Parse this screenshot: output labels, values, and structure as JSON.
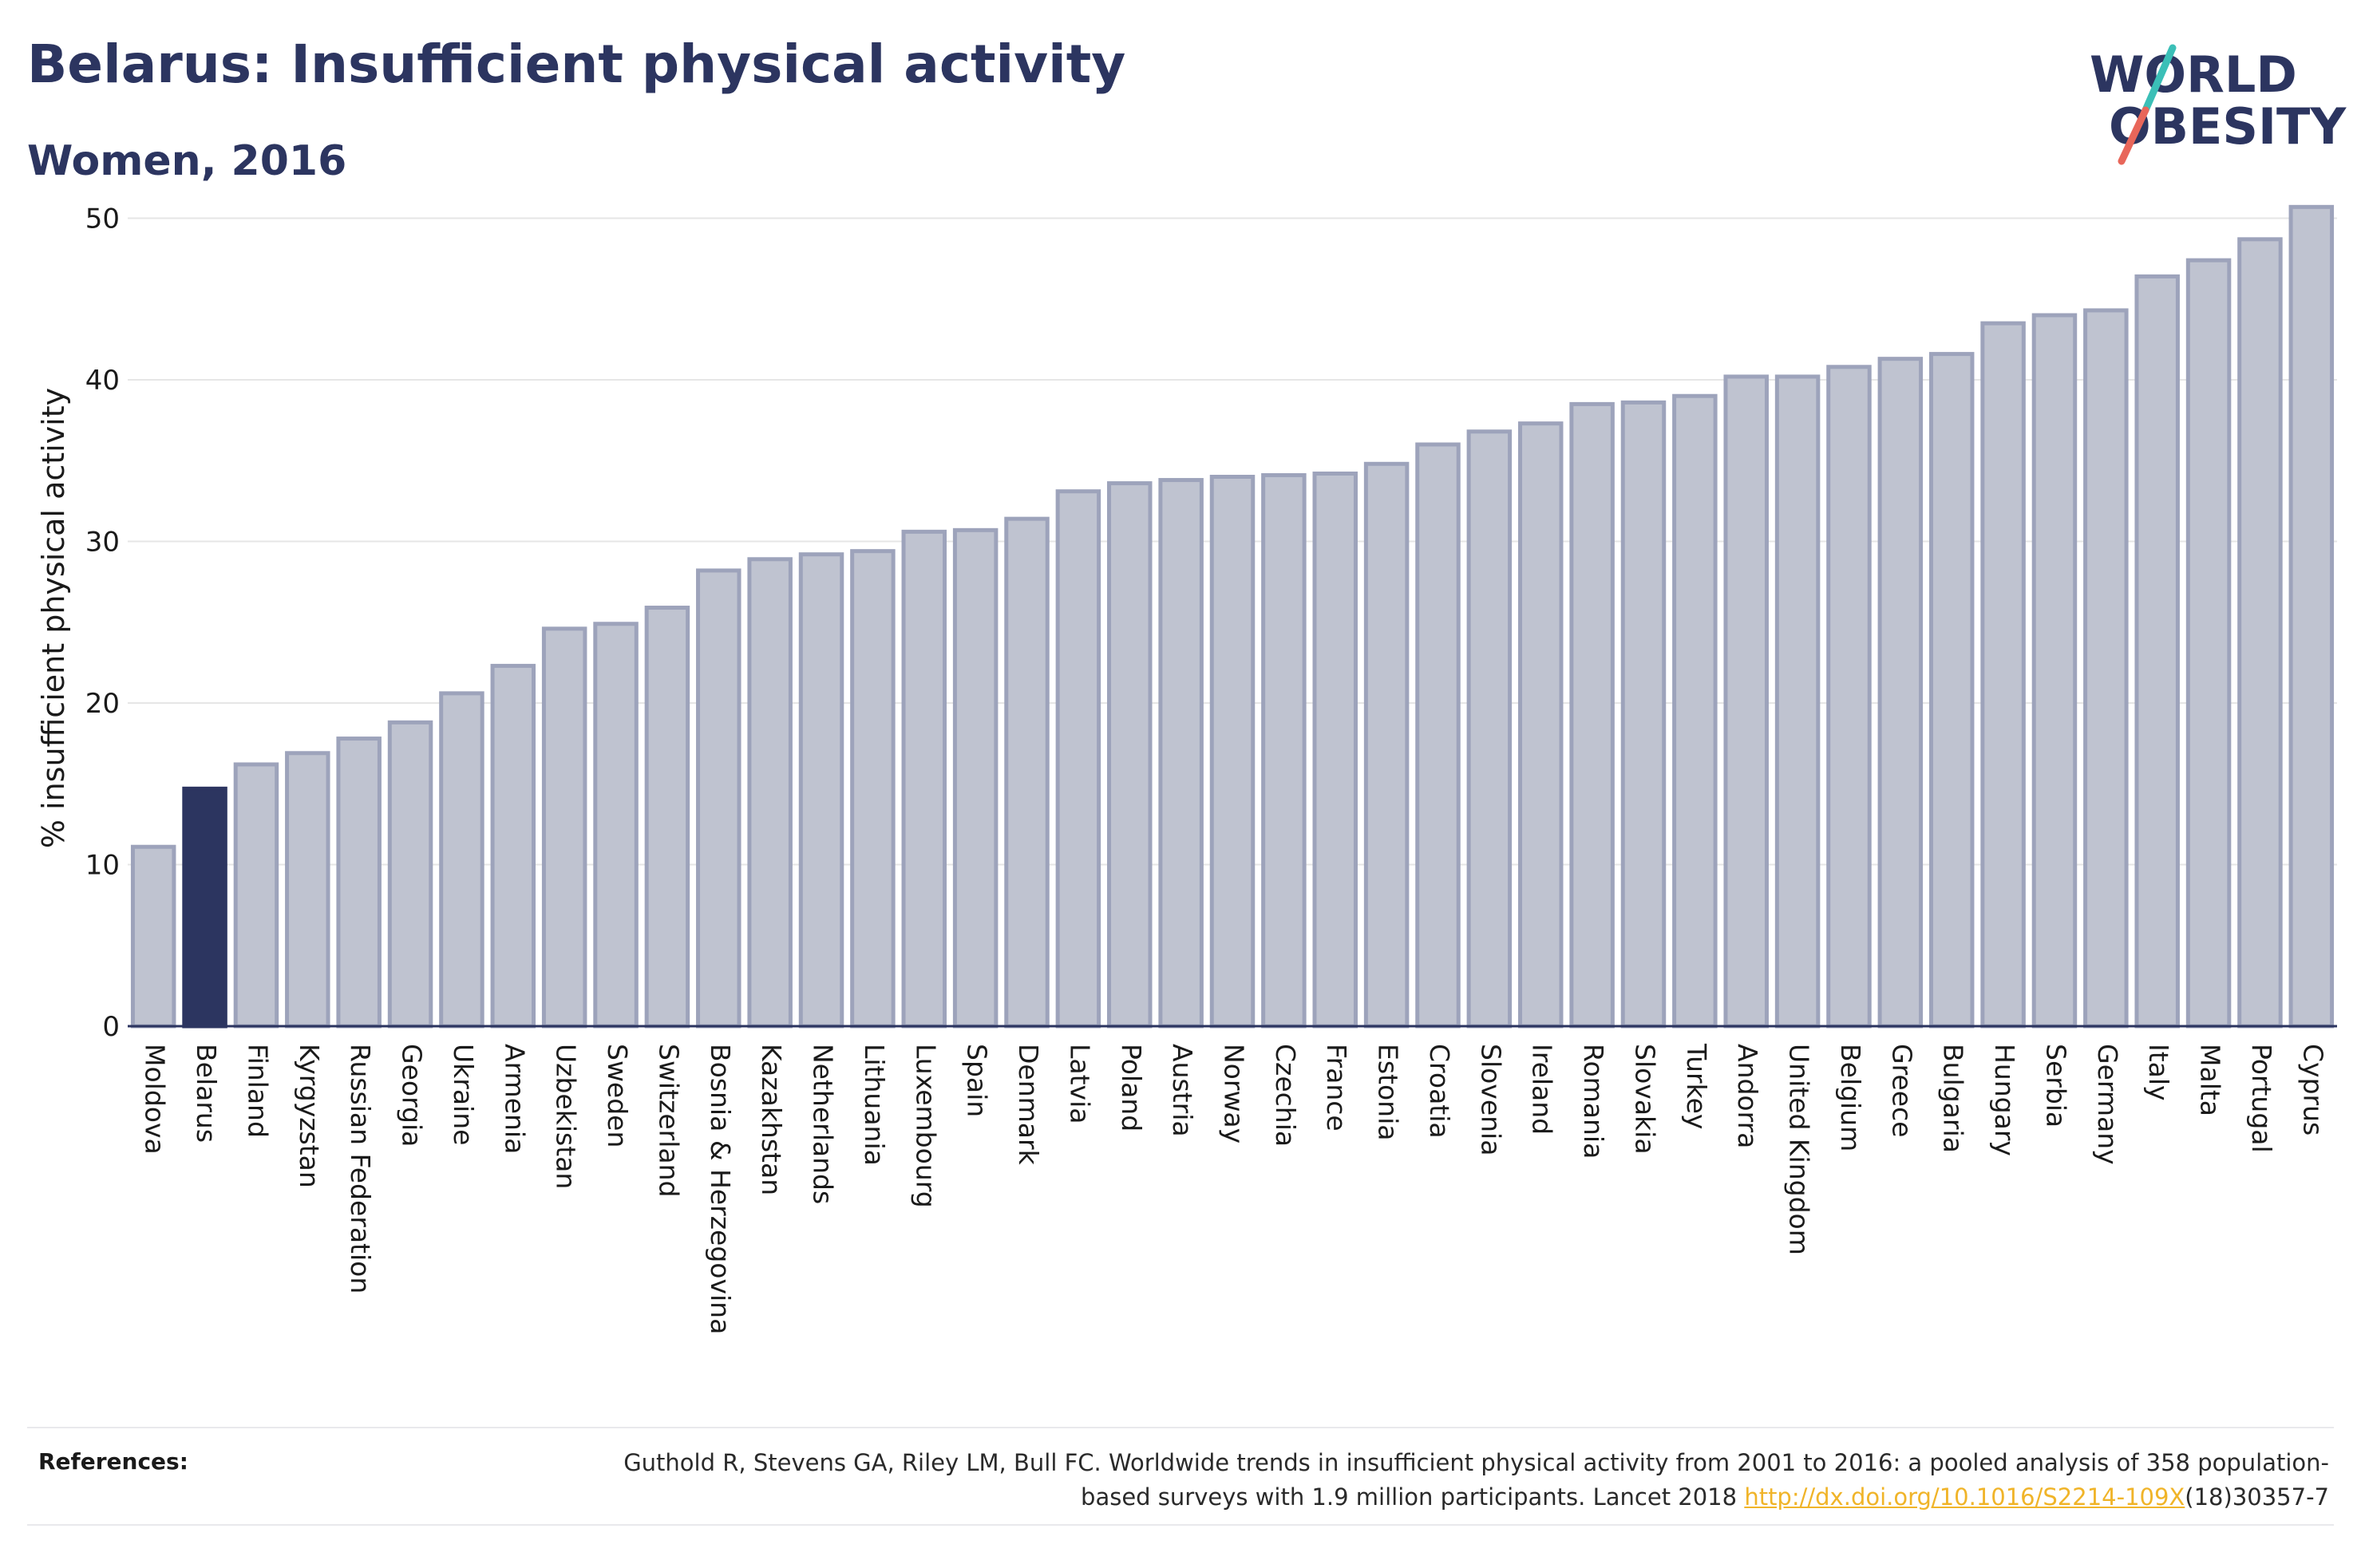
{
  "header": {
    "title": "Belarus: Insufficient physical activity",
    "subtitle": "Women, 2016"
  },
  "logo": {
    "line1": "WORLD",
    "line2": "OBESITY",
    "colors": {
      "text": "#2c3560",
      "slash_top": "#3bbfb7",
      "slash_bottom": "#e8665a"
    }
  },
  "chart_data": {
    "type": "bar",
    "title": "Belarus: Insufficient physical activity",
    "subtitle": "Women, 2016",
    "xlabel": "",
    "ylabel": "% insufficient physical activity",
    "ylim": [
      0,
      52
    ],
    "yticks": [
      0,
      10,
      20,
      30,
      40,
      50
    ],
    "grid": true,
    "highlight": "Belarus",
    "colors": {
      "bar": "#bfc3d0",
      "bar_border": "#9da3bb",
      "highlight": "#2c3560",
      "axis": "#2c3560",
      "grid": "#e6e6e6"
    },
    "categories": [
      "Moldova",
      "Belarus",
      "Finland",
      "Kyrgyzstan",
      "Russian Federation",
      "Georgia",
      "Ukraine",
      "Armenia",
      "Uzbekistan",
      "Sweden",
      "Switzerland",
      "Bosnia & Herzegovina",
      "Kazakhstan",
      "Netherlands",
      "Lithuania",
      "Luxembourg",
      "Spain",
      "Denmark",
      "Latvia",
      "Poland",
      "Austria",
      "Norway",
      "Czechia",
      "France",
      "Estonia",
      "Croatia",
      "Slovenia",
      "Ireland",
      "Romania",
      "Slovakia",
      "Turkey",
      "Andorra",
      "United Kingdom",
      "Belgium",
      "Greece",
      "Bulgaria",
      "Hungary",
      "Serbia",
      "Germany",
      "Italy",
      "Malta",
      "Portugal",
      "Cyprus"
    ],
    "values": [
      11.1,
      14.7,
      16.2,
      16.9,
      17.8,
      18.8,
      20.6,
      22.3,
      24.6,
      24.9,
      25.9,
      28.2,
      28.9,
      29.2,
      29.4,
      30.6,
      30.7,
      31.4,
      33.1,
      33.6,
      33.8,
      34.0,
      34.1,
      34.2,
      34.8,
      36.0,
      36.8,
      37.3,
      38.5,
      38.6,
      39.0,
      40.2,
      40.2,
      40.8,
      41.3,
      41.6,
      43.5,
      44.0,
      44.3,
      46.4,
      47.4,
      48.7,
      50.7
    ]
  },
  "references": {
    "label": "References:",
    "text_before": "Guthold R, Stevens GA, Riley LM, Bull FC. Worldwide trends in insufficient physical activity from 2001 to 2016: a pooled analysis of 358 population-based surveys with 1.9 million participants. Lancet 2018 ",
    "link": "http://dx.doi.org/10.1016/S2214-109X",
    "text_after": "(18)30357-7"
  }
}
